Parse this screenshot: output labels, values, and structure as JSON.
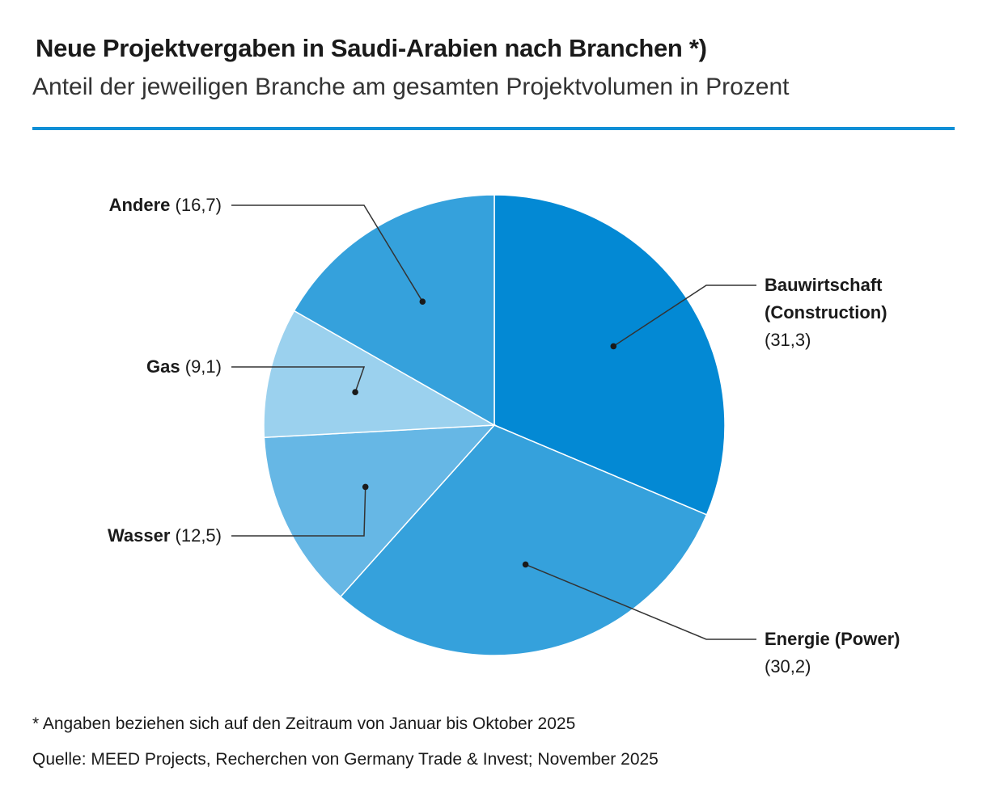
{
  "title": "Neue Projektvergaben in Saudi-Arabien nach Branchen *)",
  "subtitle": "Anteil der jeweiligen Branche am gesamten Projektvolumen in Prozent",
  "footnote": "* Angaben beziehen sich auf den Zeitraum von Januar bis Oktober 2025",
  "source": "Quelle: MEED Projects, Recherchen von Germany Trade & Invest; November 2025",
  "chart_data": {
    "type": "pie",
    "title": "Neue Projektvergaben in Saudi-Arabien nach Branchen *)",
    "unit": "Prozent",
    "slices": [
      {
        "label": "Bauwirtschaft (Construction)",
        "label_lines": [
          "Bauwirtschaft",
          "(Construction)"
        ],
        "value": 31.3,
        "value_text": "(31,3)",
        "color": "#0389d4"
      },
      {
        "label": "Energie (Power)",
        "label_lines": [
          "Energie (Power)"
        ],
        "value": 30.2,
        "value_text": "(30,2)",
        "color": "#35a1dc"
      },
      {
        "label": "Wasser",
        "label_lines": [
          "Wasser"
        ],
        "value": 12.5,
        "value_text": "(12,5)",
        "color": "#66b7e5"
      },
      {
        "label": "Gas",
        "label_lines": [
          "Gas"
        ],
        "value": 9.1,
        "value_text": "(9,1)",
        "color": "#9bd1ee"
      },
      {
        "label": "Andere",
        "label_lines": [
          "Andere"
        ],
        "value": 16.7,
        "value_text": "(16,7)",
        "color": "#35a1dc"
      }
    ]
  }
}
